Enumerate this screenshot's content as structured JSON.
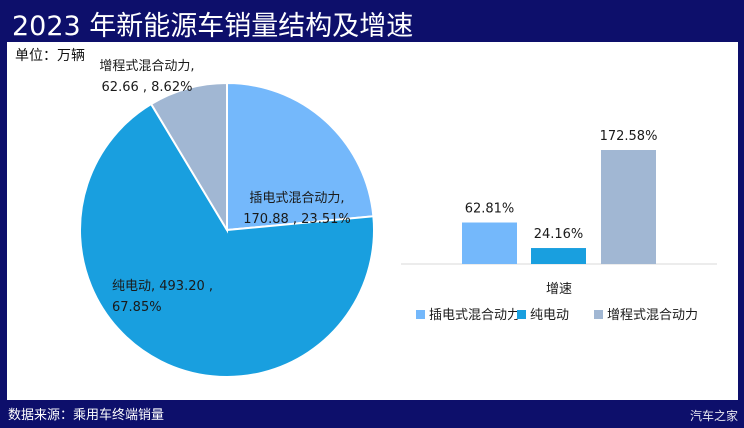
{
  "title": "2023 年新能源车销量结构及增速",
  "unit_label": "单位：万辆",
  "footer": "数据来源：乘用车终端销量",
  "watermark": "汽车之家",
  "chart_data": [
    {
      "type": "pie",
      "categories": [
        "插电式混合动力",
        "纯电动",
        "增程式混合动力"
      ],
      "values": [
        170.88,
        493.2,
        62.66
      ],
      "percents": [
        "23.51%",
        "67.85%",
        "8.62%"
      ],
      "labels": [
        [
          "插电式混合动力,",
          "170.88 , 23.51%"
        ],
        [
          "纯电动, 493.20 ,",
          "67.85%"
        ],
        [
          "增程式混合动力,",
          "62.66 , 8.62%"
        ]
      ],
      "colors": [
        "#74b8fb",
        "#199fdf",
        "#a1b7d3"
      ]
    },
    {
      "type": "bar",
      "categories": [
        "插电式混合动力",
        "纯电动",
        "增程式混合动力"
      ],
      "values": [
        62.81,
        24.16,
        172.58
      ],
      "data_labels": [
        "62.81%",
        "24.16%",
        "172.58%"
      ],
      "xlabel": "增速",
      "legend": [
        "插电式混合动力",
        "纯电动",
        "增程式混合动力"
      ],
      "legend_position": "bottom",
      "colors": [
        "#74b8fb",
        "#199fdf",
        "#a1b7d3"
      ]
    }
  ]
}
